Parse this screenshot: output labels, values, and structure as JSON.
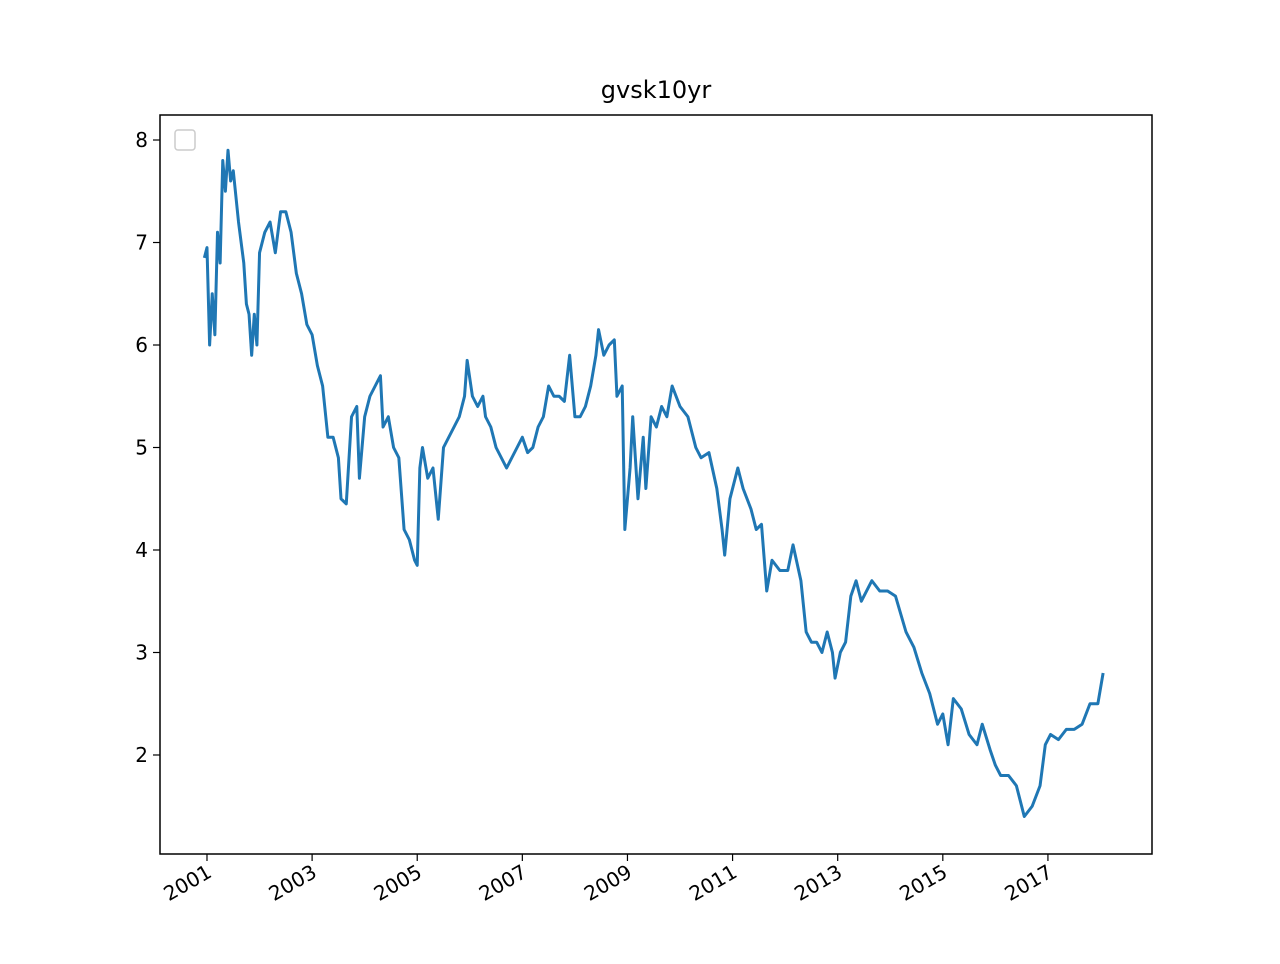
{
  "chart_data": {
    "type": "line",
    "title": "gvsk10yr",
    "x": [
      2000.95,
      2001.0,
      2001.05,
      2001.1,
      2001.15,
      2001.2,
      2001.25,
      2001.3,
      2001.35,
      2001.4,
      2001.45,
      2001.5,
      2001.6,
      2001.7,
      2001.75,
      2001.8,
      2001.85,
      2001.9,
      2001.95,
      2002.0,
      2002.1,
      2002.2,
      2002.3,
      2002.4,
      2002.5,
      2002.6,
      2002.7,
      2002.8,
      2002.9,
      2003.0,
      2003.1,
      2003.2,
      2003.3,
      2003.4,
      2003.5,
      2003.55,
      2003.65,
      2003.75,
      2003.85,
      2003.9,
      2004.0,
      2004.1,
      2004.2,
      2004.3,
      2004.35,
      2004.45,
      2004.55,
      2004.65,
      2004.75,
      2004.85,
      2004.95,
      2005.0,
      2005.05,
      2005.1,
      2005.2,
      2005.3,
      2005.4,
      2005.5,
      2005.6,
      2005.7,
      2005.8,
      2005.9,
      2005.95,
      2006.05,
      2006.15,
      2006.25,
      2006.3,
      2006.4,
      2006.5,
      2006.6,
      2006.7,
      2006.8,
      2006.9,
      2007.0,
      2007.1,
      2007.2,
      2007.3,
      2007.4,
      2007.5,
      2007.6,
      2007.7,
      2007.8,
      2007.9,
      2007.95,
      2008.0,
      2008.1,
      2008.2,
      2008.3,
      2008.4,
      2008.45,
      2008.55,
      2008.65,
      2008.75,
      2008.8,
      2008.9,
      2008.95,
      2009.05,
      2009.1,
      2009.2,
      2009.3,
      2009.35,
      2009.45,
      2009.55,
      2009.65,
      2009.75,
      2009.85,
      2010.0,
      2010.15,
      2010.3,
      2010.4,
      2010.55,
      2010.7,
      2010.8,
      2010.85,
      2010.95,
      2011.1,
      2011.2,
      2011.35,
      2011.45,
      2011.55,
      2011.65,
      2011.75,
      2011.9,
      2012.05,
      2012.15,
      2012.3,
      2012.4,
      2012.5,
      2012.6,
      2012.7,
      2012.8,
      2012.9,
      2012.95,
      2013.05,
      2013.15,
      2013.25,
      2013.35,
      2013.45,
      2013.55,
      2013.65,
      2013.8,
      2013.95,
      2014.1,
      2014.3,
      2014.45,
      2014.6,
      2014.75,
      2014.9,
      2015.0,
      2015.1,
      2015.2,
      2015.35,
      2015.5,
      2015.65,
      2015.75,
      2015.9,
      2016.0,
      2016.1,
      2016.25,
      2016.4,
      2016.55,
      2016.7,
      2016.85,
      2016.95,
      2017.05,
      2017.2,
      2017.35,
      2017.5,
      2017.65,
      2017.8,
      2017.95,
      2018.05
    ],
    "values": [
      6.85,
      6.95,
      6.0,
      6.5,
      6.1,
      7.1,
      6.8,
      7.8,
      7.5,
      7.9,
      7.6,
      7.7,
      7.2,
      6.8,
      6.4,
      6.3,
      5.9,
      6.3,
      6.0,
      6.9,
      7.1,
      7.2,
      6.9,
      7.3,
      7.3,
      7.1,
      6.7,
      6.5,
      6.2,
      6.1,
      5.8,
      5.6,
      5.1,
      5.1,
      4.9,
      4.5,
      4.45,
      5.3,
      5.4,
      4.7,
      5.3,
      5.5,
      5.6,
      5.7,
      5.2,
      5.3,
      5.0,
      4.9,
      4.2,
      4.1,
      3.9,
      3.85,
      4.8,
      5.0,
      4.7,
      4.8,
      4.3,
      5.0,
      5.1,
      5.2,
      5.3,
      5.5,
      5.85,
      5.5,
      5.4,
      5.5,
      5.3,
      5.2,
      5.0,
      4.9,
      4.8,
      4.9,
      5.0,
      5.1,
      4.95,
      5.0,
      5.2,
      5.3,
      5.6,
      5.5,
      5.5,
      5.45,
      5.9,
      5.6,
      5.3,
      5.3,
      5.4,
      5.6,
      5.9,
      6.15,
      5.9,
      6.0,
      6.05,
      5.5,
      5.6,
      4.2,
      4.8,
      5.3,
      4.5,
      5.1,
      4.6,
      5.3,
      5.2,
      5.4,
      5.3,
      5.6,
      5.4,
      5.3,
      5.0,
      4.9,
      4.95,
      4.6,
      4.2,
      3.95,
      4.5,
      4.8,
      4.6,
      4.4,
      4.2,
      4.25,
      3.6,
      3.9,
      3.8,
      3.8,
      4.05,
      3.7,
      3.2,
      3.1,
      3.1,
      3.0,
      3.2,
      3.0,
      2.75,
      3.0,
      3.1,
      3.55,
      3.7,
      3.5,
      3.6,
      3.7,
      3.6,
      3.6,
      3.55,
      3.2,
      3.05,
      2.8,
      2.6,
      2.3,
      2.4,
      2.1,
      2.55,
      2.45,
      2.2,
      2.1,
      2.3,
      2.05,
      1.9,
      1.8,
      1.8,
      1.7,
      1.4,
      1.5,
      1.7,
      2.1,
      2.2,
      2.15,
      2.25,
      2.25,
      2.3,
      2.5,
      2.5,
      2.8
    ],
    "color": "#1f77b4",
    "xlim": [
      2000.106,
      2018.98
    ],
    "xticks": [
      2001,
      2003,
      2005,
      2007,
      2009,
      2011,
      2013,
      2015,
      2017
    ],
    "ylim": [
      1.034,
      8.244
    ],
    "yticks": [
      2,
      3,
      4,
      5,
      6,
      7,
      8
    ],
    "legend": "upper left"
  }
}
